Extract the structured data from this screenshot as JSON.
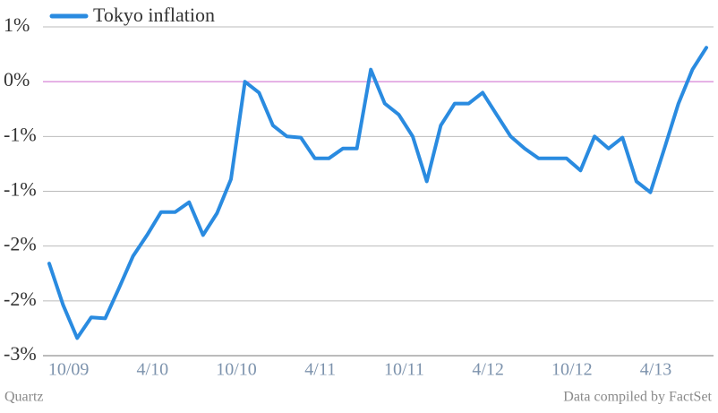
{
  "chart_data": {
    "type": "line",
    "credit": "Quartz",
    "source": "Data compiled by FactSet",
    "categories": [
      null,
      "10/09",
      null,
      null,
      null,
      null,
      null,
      "4/10",
      null,
      null,
      null,
      null,
      null,
      "10/10",
      null,
      null,
      null,
      null,
      null,
      "4/11",
      null,
      null,
      null,
      null,
      null,
      "10/11",
      null,
      null,
      null,
      null,
      null,
      "4/12",
      null,
      null,
      null,
      null,
      null,
      "10/12",
      null,
      null,
      null,
      null,
      null,
      "4/13",
      null,
      null,
      null,
      null
    ],
    "series": [
      {
        "name": "Tokyo inflation",
        "color": "#2a8be0",
        "values": [
          -1.66,
          -2.04,
          -2.34,
          -2.15,
          -2.16,
          -1.88,
          -1.59,
          -1.4,
          -1.19,
          -1.19,
          -1.1,
          -1.4,
          -1.2,
          -0.89,
          0,
          -0.1,
          -0.4,
          -0.5,
          -0.51,
          -0.7,
          -0.7,
          -0.61,
          -0.61,
          0.11,
          -0.2,
          -0.3,
          -0.5,
          -0.91,
          -0.4,
          -0.2,
          -0.2,
          -0.1,
          -0.3,
          -0.5,
          -0.61,
          -0.7,
          -0.7,
          -0.7,
          -0.81,
          -0.5,
          -0.61,
          -0.51,
          -0.91,
          -1.01,
          -0.61,
          -0.2,
          0.11,
          0.31
        ]
      }
    ],
    "ylim": [
      -2.5,
      0.5
    ],
    "yticks": [
      {
        "value": 0.5,
        "label": "1%"
      },
      {
        "value": 0,
        "label": "0%"
      },
      {
        "value": -0.5,
        "label": "-1%"
      },
      {
        "value": -1,
        "label": "-1%"
      },
      {
        "value": -1.5,
        "label": "-2%"
      },
      {
        "value": -2,
        "label": "-2%"
      },
      {
        "value": -2.5,
        "label": "-3%"
      }
    ],
    "grid": true,
    "zero_line_color": "#cc66cc",
    "legend": "top-left"
  }
}
